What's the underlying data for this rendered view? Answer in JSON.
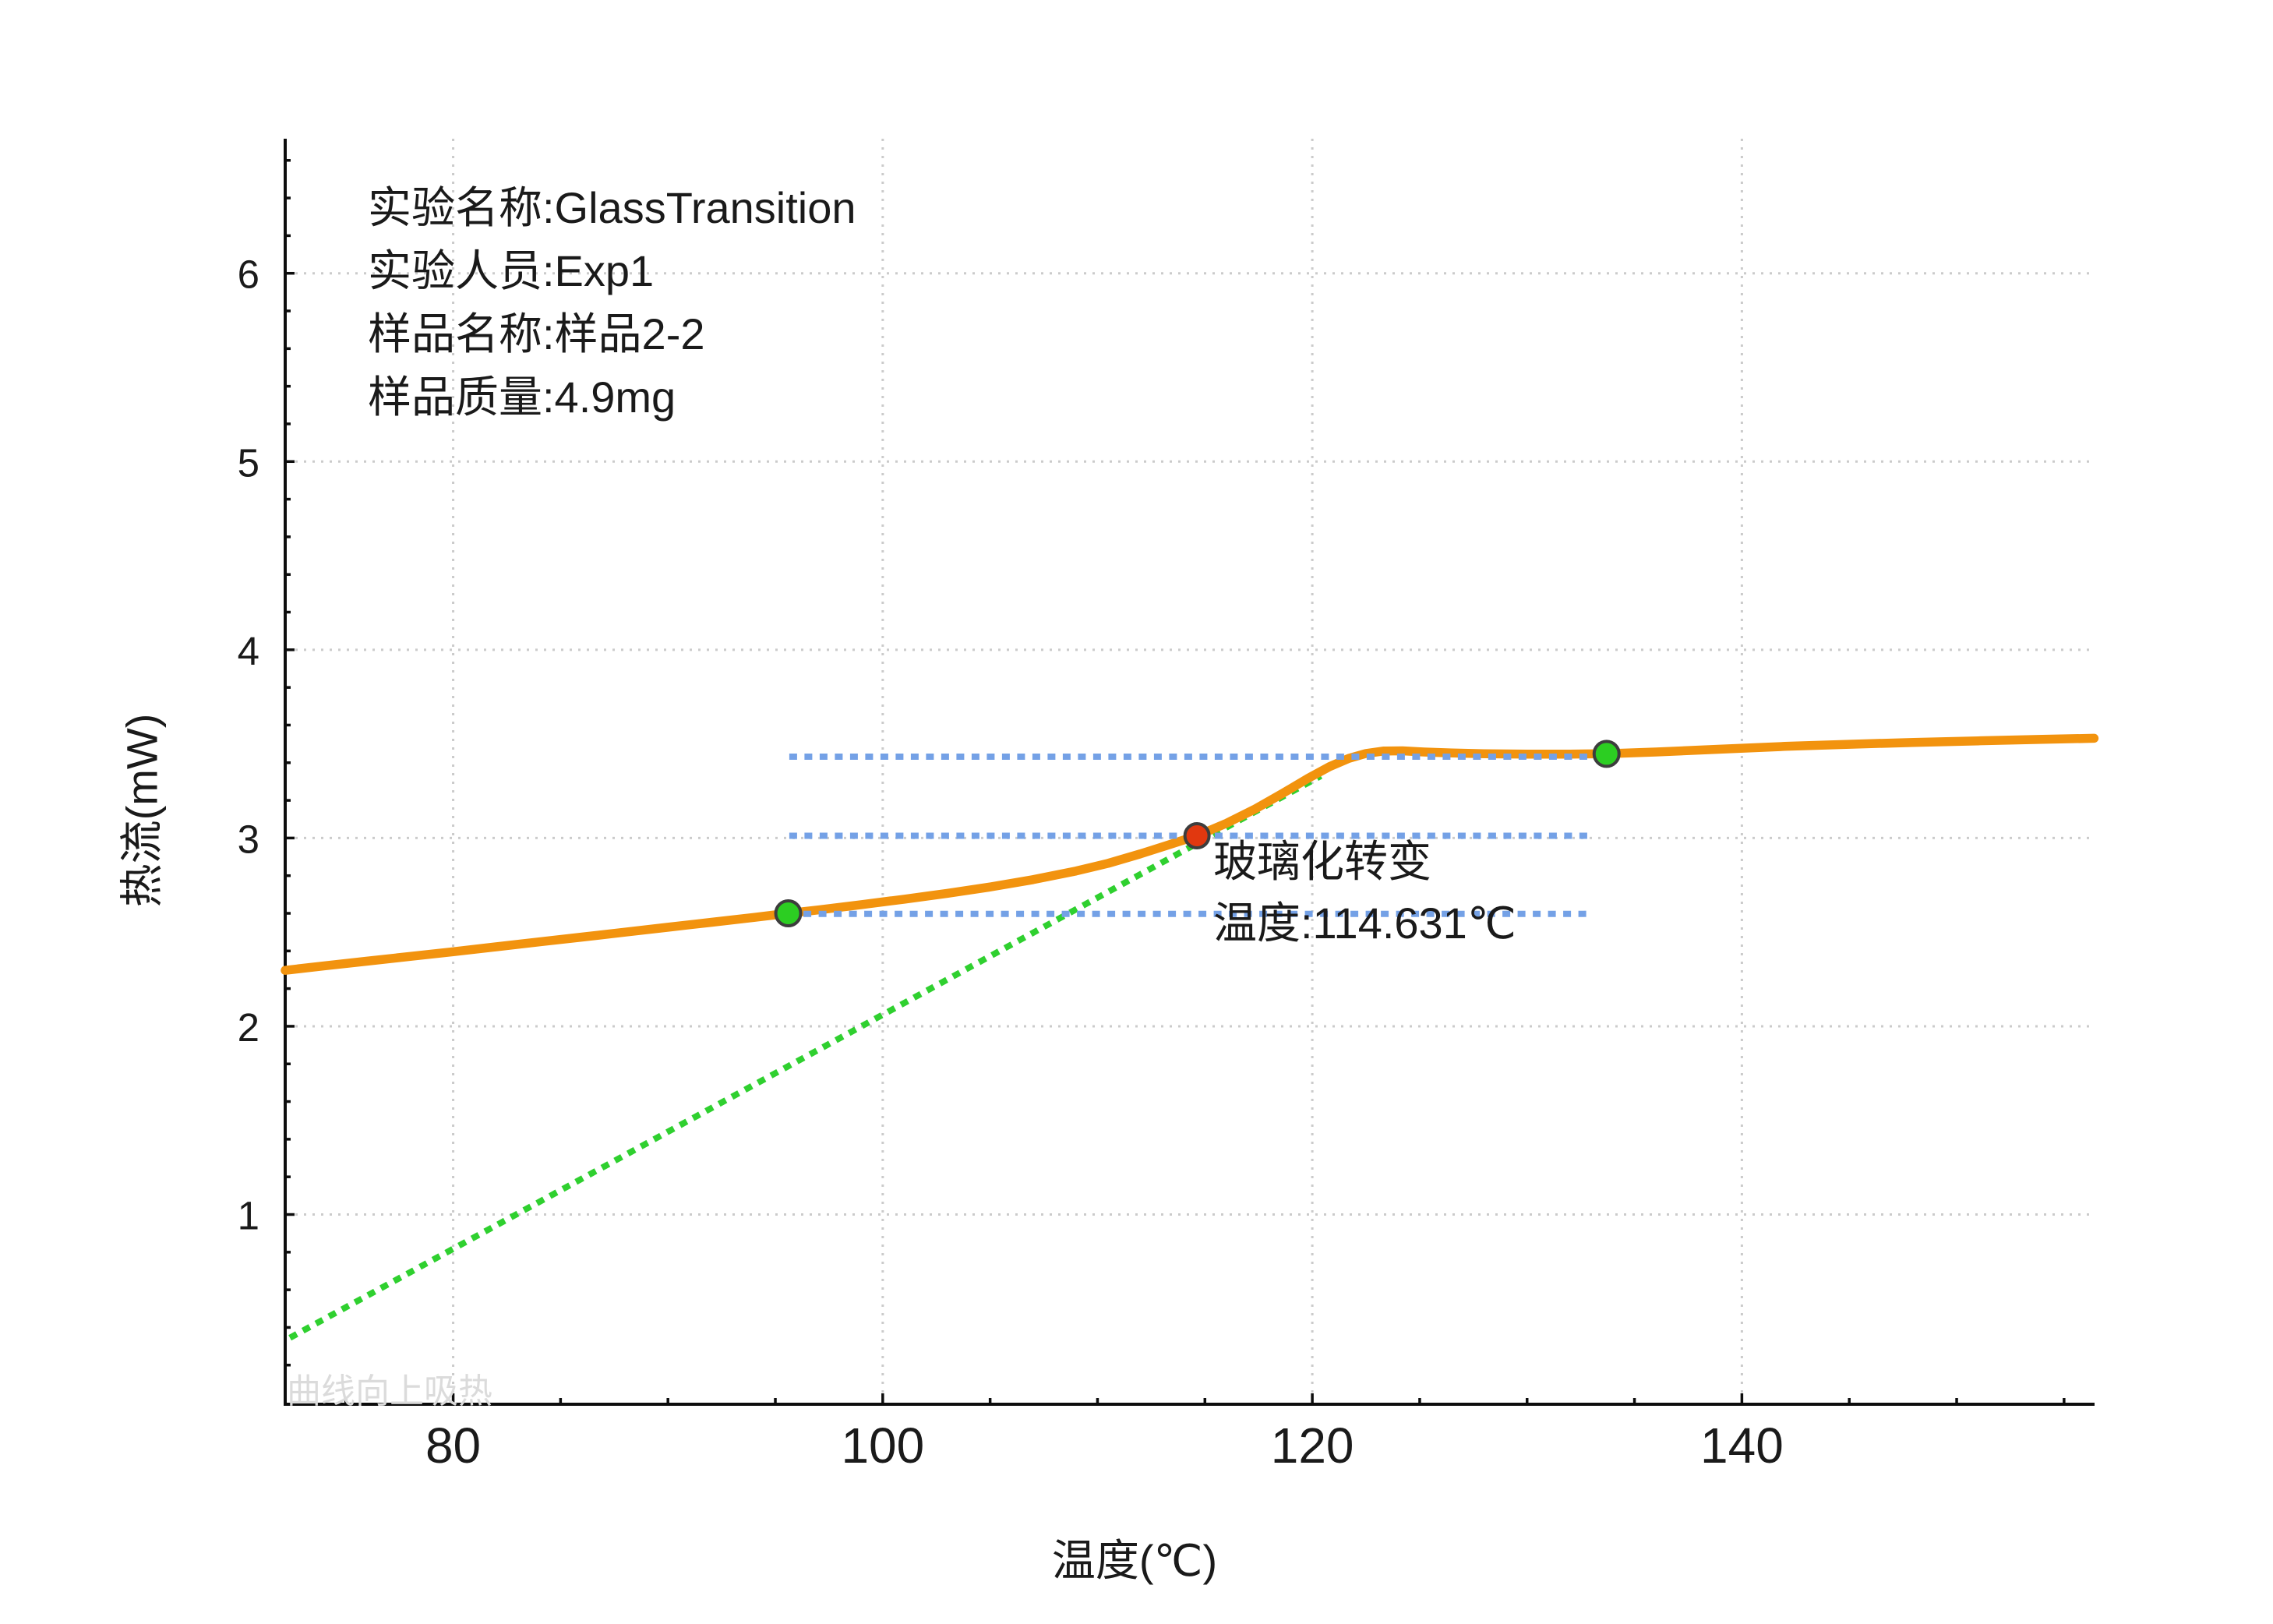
{
  "colors": {
    "background": "#ffffff",
    "curve_orange": "#F2930E",
    "tangent_green": "#2FD02F",
    "level_line_blue": "#74A1E6",
    "marker_green": "#2CCE22",
    "marker_red": "#E1380F",
    "marker_edge": "#3D3D3D",
    "grid_gray": "#CBCBCB",
    "axis_black": "#0D0D0D",
    "text_black": "#1A1A1A",
    "watermark_gray": "#DBDBDB"
  },
  "chart_data": {
    "type": "line",
    "info_lines": [
      "实验名称:GlassTransition",
      "实验人员:Exp1",
      "样品名称:样品2-2",
      "样品质量:4.9mg"
    ],
    "annotation": {
      "line1": "玻璃化转变",
      "line2": "温度:114.631℃"
    },
    "watermark": "曲线向上吸热",
    "xlabel": "温度(℃)",
    "ylabel": "热流(mW)",
    "xlim": [
      72.18,
      156.42
    ],
    "ylim": [
      -0.008,
      6.715
    ],
    "x_ticks": [
      80,
      100,
      120,
      140
    ],
    "y_ticks": [
      1,
      2,
      3,
      4,
      5,
      6
    ],
    "x_minor_step": 5,
    "y_minor_step": 0.2,
    "grid": "dotted, major ticks, both axes",
    "legend": "none",
    "glass_transition": {
      "onset_temp_c": 95.6,
      "onset_mw": 2.6,
      "midpoint_temp_c": 114.631,
      "midpoint_mw": 3.012,
      "endset_temp_c": 133.7,
      "endset_mw": 3.447
    },
    "series": [
      {
        "name": "inflection-tangent",
        "color": "#2FD02F",
        "width": 8,
        "dash": "10 9",
        "points": [
          [
            72.4,
            0.345
          ],
          [
            120.4,
            3.33
          ]
        ]
      },
      {
        "name": "heat-flow-curve",
        "color": "#F2930E",
        "width": 11.5,
        "dash": null,
        "points": [
          [
            72.18,
            2.297
          ],
          [
            74,
            2.321
          ],
          [
            76,
            2.346
          ],
          [
            78,
            2.371
          ],
          [
            80,
            2.396
          ],
          [
            82,
            2.422
          ],
          [
            84,
            2.448
          ],
          [
            86,
            2.474
          ],
          [
            88,
            2.5
          ],
          [
            90,
            2.526
          ],
          [
            92,
            2.552
          ],
          [
            94,
            2.578
          ],
          [
            95.6,
            2.6
          ],
          [
            97,
            2.618
          ],
          [
            99,
            2.646
          ],
          [
            101,
            2.675
          ],
          [
            103,
            2.706
          ],
          [
            105,
            2.74
          ],
          [
            107,
            2.779
          ],
          [
            109,
            2.825
          ],
          [
            110.5,
            2.866
          ],
          [
            112,
            2.916
          ],
          [
            113.3,
            2.963
          ],
          [
            114.631,
            3.012
          ],
          [
            116,
            3.078
          ],
          [
            117.3,
            3.152
          ],
          [
            118.6,
            3.236
          ],
          [
            119.8,
            3.317
          ],
          [
            120.8,
            3.379
          ],
          [
            121.7,
            3.423
          ],
          [
            122.5,
            3.449
          ],
          [
            123.3,
            3.462
          ],
          [
            124.2,
            3.463
          ],
          [
            125.2,
            3.457
          ],
          [
            126.5,
            3.452
          ],
          [
            128,
            3.448
          ],
          [
            130,
            3.446
          ],
          [
            132,
            3.446
          ],
          [
            133.7,
            3.448
          ],
          [
            136,
            3.457
          ],
          [
            139,
            3.472
          ],
          [
            142,
            3.487
          ],
          [
            145,
            3.498
          ],
          [
            148,
            3.508
          ],
          [
            151,
            3.516
          ],
          [
            154,
            3.524
          ],
          [
            156.4,
            3.53
          ]
        ]
      },
      {
        "name": "endset-level-line",
        "color": "#74A1E6",
        "width": 8,
        "dash": "10 9.5",
        "points": [
          [
            95.65,
            3.432
          ],
          [
            132.9,
            3.432
          ]
        ]
      },
      {
        "name": "midpoint-level-line",
        "color": "#74A1E6",
        "width": 8,
        "dash": "10 9.5",
        "points": [
          [
            95.65,
            3.012
          ],
          [
            132.9,
            3.012
          ]
        ]
      },
      {
        "name": "onset-level-line",
        "color": "#74A1E6",
        "width": 8,
        "dash": "10 9.5",
        "points": [
          [
            95.6,
            2.597
          ],
          [
            133.0,
            2.597
          ]
        ]
      }
    ],
    "markers": [
      {
        "name": "onset-point-marker",
        "x": 95.6,
        "y": 2.6,
        "r": 16,
        "fill": "#2CCE22"
      },
      {
        "name": "midpoint-point-marker",
        "x": 114.631,
        "y": 3.012,
        "r": 15.5,
        "fill": "#E1380F"
      },
      {
        "name": "endset-point-marker",
        "x": 133.7,
        "y": 3.447,
        "r": 16,
        "fill": "#2CCE22"
      }
    ],
    "layout": {
      "plot_left": 366,
      "plot_top": 178,
      "plot_right": 2688,
      "plot_bottom": 1802,
      "x_tick_label_baseline": 1877,
      "y_tick_label_right": 333
    }
  }
}
